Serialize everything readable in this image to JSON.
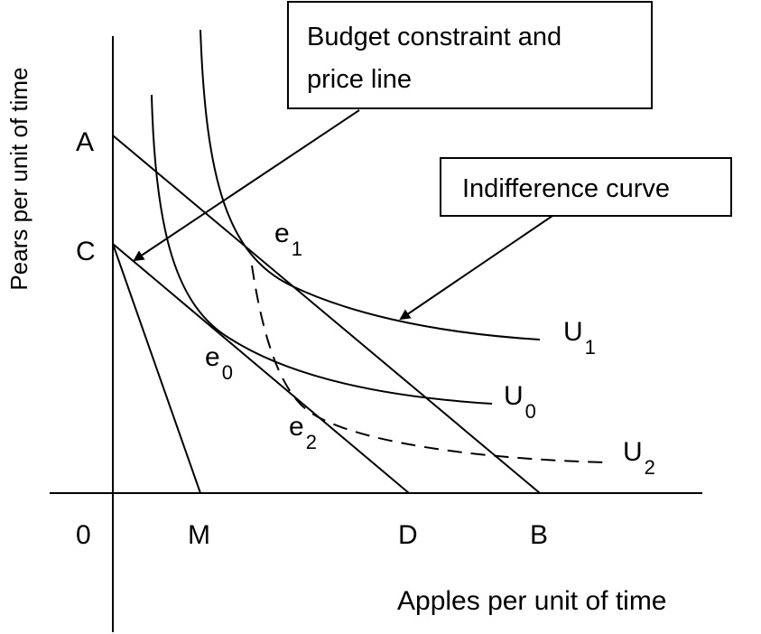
{
  "axes": {
    "x_label": "Apples per unit of time",
    "y_label": "Pears per unit of time"
  },
  "point_labels": {
    "origin": "0",
    "A": "A",
    "C": "C",
    "M": "M",
    "D": "D",
    "B": "B"
  },
  "equilibria": {
    "e1": {
      "base": "e",
      "sub": "1"
    },
    "e0": {
      "base": "e",
      "sub": "0"
    },
    "e2": {
      "base": "e",
      "sub": "2"
    }
  },
  "curves": {
    "U1": {
      "base": "U",
      "sub": "1",
      "style": "solid"
    },
    "U0": {
      "base": "U",
      "sub": "0",
      "style": "solid"
    },
    "U2": {
      "base": "U",
      "sub": "2",
      "style": "dashed"
    }
  },
  "callouts": {
    "budget_line1": "Budget constraint and",
    "budget_line2": "price line",
    "indifference": "Indifference curve"
  },
  "colors": {
    "ink": "#000000",
    "background": "#ffffff"
  }
}
